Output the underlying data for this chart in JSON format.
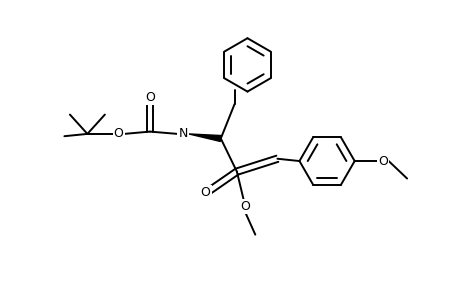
{
  "bg_color": "#ffffff",
  "line_color": "#000000",
  "line_width": 1.4,
  "figsize": [
    4.6,
    3.0
  ],
  "dpi": 100,
  "xlim": [
    0,
    10
  ],
  "ylim": [
    0,
    6.5
  ]
}
